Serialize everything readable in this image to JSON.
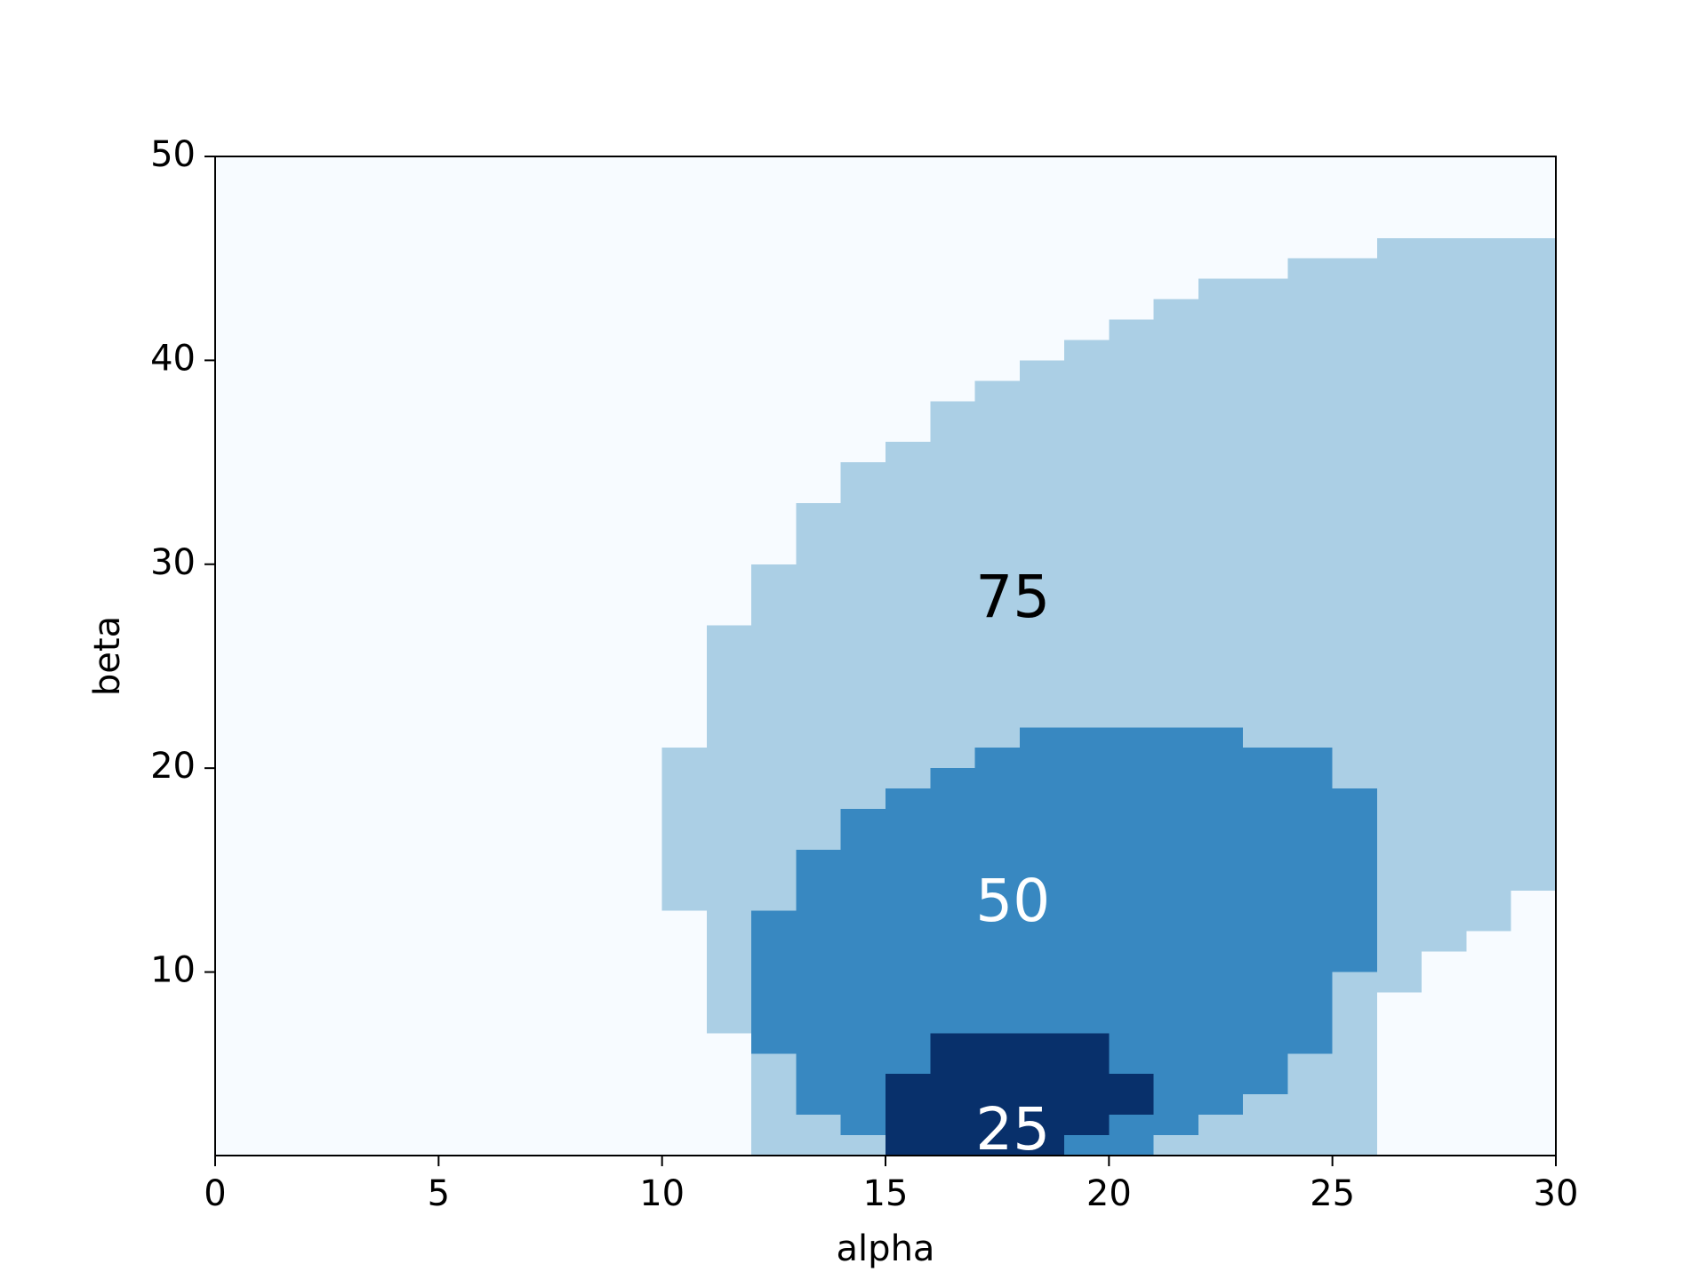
{
  "chart_data": {
    "type": "heatmap",
    "title": "",
    "xlabel": "alpha",
    "ylabel": "beta",
    "xlim": [
      0,
      30
    ],
    "ylim": [
      1,
      50
    ],
    "xticks": [
      0,
      5,
      10,
      15,
      20,
      25,
      30
    ],
    "yticks": [
      10,
      20,
      30,
      40,
      50
    ],
    "xtick_labels": [
      "0",
      "5",
      "10",
      "15",
      "20",
      "25",
      "30"
    ],
    "ytick_labels": [
      "10",
      "20",
      "30",
      "40",
      "50"
    ],
    "grid": false,
    "colormap": "Blues",
    "level_colors": {
      "0": "#f7fbff",
      "75": "#abcfe5",
      "50": "#3888c1",
      "25": "#08306b"
    },
    "levels": [
      {
        "level": 75,
        "label": "75",
        "label_color": "#000000",
        "label_position": [
          17.85,
          28.2
        ],
        "columns": [
          {
            "alpha": [
              10,
              11
            ],
            "beta": [
              13,
              21
            ]
          },
          {
            "alpha": [
              11,
              12
            ],
            "beta": [
              7,
              27
            ]
          },
          {
            "alpha": [
              12,
              13
            ],
            "beta": [
              4,
              30
            ]
          },
          {
            "alpha": [
              13,
              14
            ],
            "beta": [
              3,
              33
            ]
          },
          {
            "alpha": [
              14,
              15
            ],
            "beta": [
              1,
              35
            ]
          },
          {
            "alpha": [
              15,
              16
            ],
            "beta": [
              1,
              36
            ]
          },
          {
            "alpha": [
              16,
              17
            ],
            "beta": [
              1,
              38
            ]
          },
          {
            "alpha": [
              17,
              18
            ],
            "beta": [
              1,
              39
            ]
          },
          {
            "alpha": [
              18,
              19
            ],
            "beta": [
              1,
              40
            ]
          },
          {
            "alpha": [
              19,
              20
            ],
            "beta": [
              1,
              41
            ]
          },
          {
            "alpha": [
              20,
              21
            ],
            "beta": [
              1,
              42
            ]
          },
          {
            "alpha": [
              21,
              22
            ],
            "beta": [
              1,
              43
            ]
          },
          {
            "alpha": [
              22,
              24
            ],
            "beta": [
              1,
              44
            ]
          },
          {
            "alpha": [
              24,
              26
            ],
            "beta": [
              1,
              45
            ]
          },
          {
            "alpha": [
              26,
              30
            ],
            "beta": [
              1,
              46
            ]
          }
        ],
        "lower_cutouts": [
          {
            "alpha": [
              25,
              26
            ],
            "beta": [
              1,
              8
            ]
          },
          {
            "alpha": [
              26,
              27
            ],
            "beta": [
              1,
              9
            ]
          },
          {
            "alpha": [
              27,
              28
            ],
            "beta": [
              1,
              11
            ]
          },
          {
            "alpha": [
              28,
              29
            ],
            "beta": [
              1,
              12
            ]
          },
          {
            "alpha": [
              29,
              30
            ],
            "beta": [
              1,
              14
            ]
          }
        ]
      },
      {
        "level": 50,
        "label": "50",
        "label_color": "#ffffff",
        "label_position": [
          17.85,
          13.3
        ],
        "columns": [
          {
            "alpha": [
              12,
              13
            ],
            "beta": [
              6,
              13
            ]
          },
          {
            "alpha": [
              13,
              14
            ],
            "beta": [
              3,
              16
            ]
          },
          {
            "alpha": [
              14,
              15
            ],
            "beta": [
              1,
              18
            ]
          },
          {
            "alpha": [
              15,
              16
            ],
            "beta": [
              1,
              19
            ]
          },
          {
            "alpha": [
              16,
              17
            ],
            "beta": [
              1,
              20
            ]
          },
          {
            "alpha": [
              17,
              18
            ],
            "beta": [
              1,
              21
            ]
          },
          {
            "alpha": [
              18,
              23
            ],
            "beta": [
              1,
              22
            ]
          },
          {
            "alpha": [
              23,
              25
            ],
            "beta": [
              1,
              21
            ]
          },
          {
            "alpha": [
              25,
              26
            ],
            "beta": [
              1,
              19
            ]
          }
        ],
        "lower_cutouts": [
          {
            "alpha": [
              12,
              13
            ],
            "beta": [
              1,
              6
            ]
          },
          {
            "alpha": [
              13,
              14
            ],
            "beta": [
              1,
              3
            ]
          },
          {
            "alpha": [
              14,
              15
            ],
            "beta": [
              1,
              2
            ]
          },
          {
            "alpha": [
              21,
              22
            ],
            "beta": [
              1,
              2
            ]
          },
          {
            "alpha": [
              22,
              23
            ],
            "beta": [
              1,
              3
            ]
          },
          {
            "alpha": [
              23,
              24
            ],
            "beta": [
              1,
              4
            ]
          },
          {
            "alpha": [
              24,
              25
            ],
            "beta": [
              1,
              6
            ]
          },
          {
            "alpha": [
              25,
              26
            ],
            "beta": [
              1,
              10
            ]
          }
        ]
      },
      {
        "level": 25,
        "label": "25",
        "label_color": "#ffffff",
        "label_position": [
          17.85,
          2.1
        ],
        "columns": [
          {
            "alpha": [
              15,
              16
            ],
            "beta": [
              1,
              5
            ]
          },
          {
            "alpha": [
              16,
              19
            ],
            "beta": [
              1,
              7
            ]
          },
          {
            "alpha": [
              19,
              20
            ],
            "beta": [
              2,
              7
            ]
          },
          {
            "alpha": [
              20,
              21
            ],
            "beta": [
              3,
              5
            ]
          }
        ],
        "lower_cutouts": []
      }
    ]
  }
}
